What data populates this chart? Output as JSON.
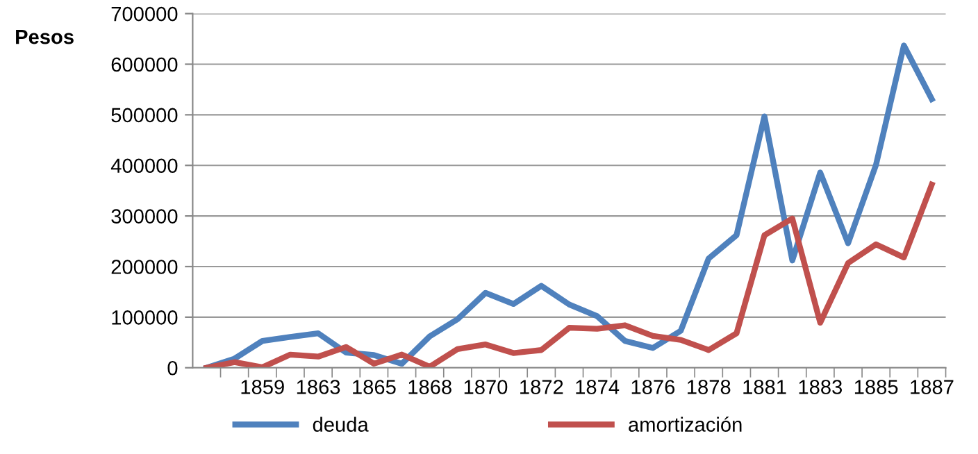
{
  "chart_data": {
    "type": "line",
    "ylabel": "Pesos",
    "categories": [
      null,
      null,
      "1859",
      null,
      "1863",
      null,
      "1865",
      null,
      "1868",
      null,
      "1870",
      null,
      "1872",
      null,
      "1874",
      null,
      "1876",
      null,
      "1878",
      null,
      "1881",
      null,
      "1883",
      null,
      "1885",
      null,
      "1887"
    ],
    "series": [
      {
        "name": "deuda",
        "color": "#4f81bd",
        "values": [
          0,
          18000,
          53000,
          61000,
          68000,
          30000,
          25000,
          8000,
          62000,
          96000,
          148000,
          126000,
          162000,
          125000,
          102000,
          53000,
          39000,
          73000,
          216000,
          262000,
          497000,
          212000,
          386000,
          246000,
          401000,
          637000,
          531000
        ]
      },
      {
        "name": "amortización",
        "color": "#c0504d",
        "values": [
          0,
          11000,
          1000,
          26000,
          22000,
          41000,
          8000,
          26000,
          2000,
          37000,
          46000,
          29000,
          35000,
          79000,
          77000,
          84000,
          63000,
          55000,
          35000,
          68000,
          262000,
          295000,
          89000,
          207000,
          244000,
          218000,
          362000
        ]
      }
    ],
    "ylim": [
      0,
      700000
    ],
    "yticks": [
      0,
      100000,
      200000,
      300000,
      400000,
      500000,
      600000,
      700000
    ],
    "grid": "y",
    "legend": "bottom",
    "marker": "none",
    "line_style": "solid"
  }
}
